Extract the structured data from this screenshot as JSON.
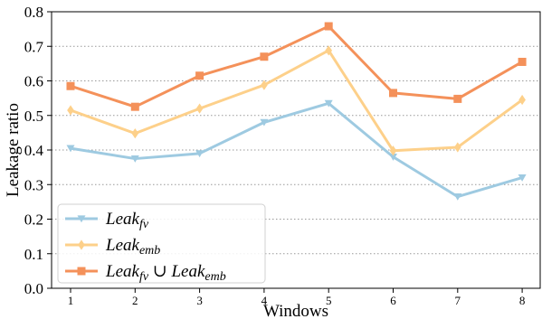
{
  "chart_data": {
    "type": "line",
    "xlabel": "Windows",
    "ylabel": "Leakage ratio",
    "categories": [
      "1",
      "2",
      "3",
      "4",
      "5",
      "6",
      "7",
      "8"
    ],
    "ylim": [
      0.0,
      0.8
    ],
    "yticks": [
      "0.0",
      "0.1",
      "0.2",
      "0.3",
      "0.4",
      "0.5",
      "0.6",
      "0.7",
      "0.8"
    ],
    "grid": "horizontal dotted",
    "legend_position": "lower-left",
    "series": [
      {
        "name_base": "Leak",
        "name_sub": "fv",
        "name_union": "",
        "name_base2": "",
        "name_sub2": "",
        "color": "#9ecae1",
        "marker": "triangle-down",
        "values": [
          0.405,
          0.375,
          0.39,
          0.48,
          0.535,
          0.38,
          0.265,
          0.32
        ]
      },
      {
        "name_base": "Leak",
        "name_sub": "emb",
        "name_union": "",
        "name_base2": "",
        "name_sub2": "",
        "color": "#fdd08a",
        "marker": "diamond",
        "values": [
          0.515,
          0.448,
          0.52,
          0.588,
          0.688,
          0.398,
          0.408,
          0.545
        ]
      },
      {
        "name_base": "Leak",
        "name_sub": "fv",
        "name_union": " ∪ ",
        "name_base2": "Leak",
        "name_sub2": "emb",
        "color": "#f4915a",
        "marker": "square",
        "values": [
          0.585,
          0.525,
          0.615,
          0.67,
          0.758,
          0.565,
          0.548,
          0.655
        ]
      }
    ]
  }
}
